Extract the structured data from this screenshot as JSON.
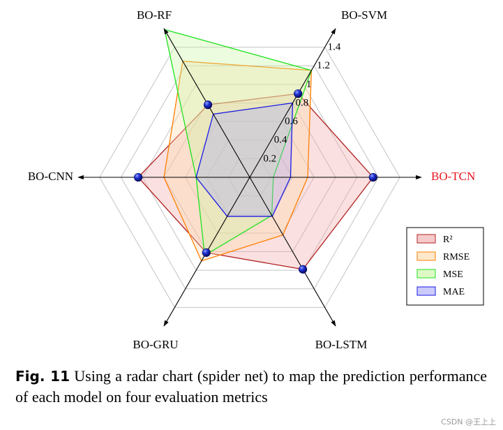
{
  "chart_data": {
    "type": "radar",
    "axes": [
      "BO-TCN",
      "BO-SVM",
      "BO-RF",
      "BO-CNN",
      "BO-GRU",
      "BO-LSTM"
    ],
    "highlight_axis": "BO-TCN",
    "highlight_color": "#e8141e",
    "rlim": [
      0,
      1.6
    ],
    "ticks": [
      0.2,
      0.4,
      0.6,
      0.8,
      1.0,
      1.2,
      1.4
    ],
    "tick_labels": [
      "0.2",
      "0.4",
      "0.6",
      "0.8",
      "1",
      "1.2",
      "1.4"
    ],
    "series": [
      {
        "name": "R²",
        "color": "#b22222",
        "fill": "#f2a6a6",
        "values": [
          1.15,
          0.9,
          0.78,
          1.04,
          0.81,
          0.99
        ],
        "markers": true
      },
      {
        "name": "RMSE",
        "color": "#ff7f00",
        "fill": "#ffd9a8",
        "values": [
          0.54,
          1.15,
          1.25,
          0.8,
          0.9,
          0.62
        ],
        "markers": false
      },
      {
        "name": "MSE",
        "color": "#1fe21f",
        "fill": "#c8f5a0",
        "values": [
          0.22,
          1.15,
          1.59,
          0.5,
          0.84,
          0.41
        ],
        "markers": false
      },
      {
        "name": "MAE",
        "color": "#1a1ae6",
        "fill": "#a8a8f5",
        "values": [
          0.38,
          0.8,
          0.68,
          0.5,
          0.42,
          0.42
        ],
        "markers": false
      }
    ],
    "legend_position": "bottom-right",
    "grid": true
  },
  "caption": {
    "figure_label": "Fig. 11",
    "text": " Using a radar chart (spider net) to map the prediction performance of each model on four evaluation metrics"
  },
  "watermark": "CSDN @王上上"
}
